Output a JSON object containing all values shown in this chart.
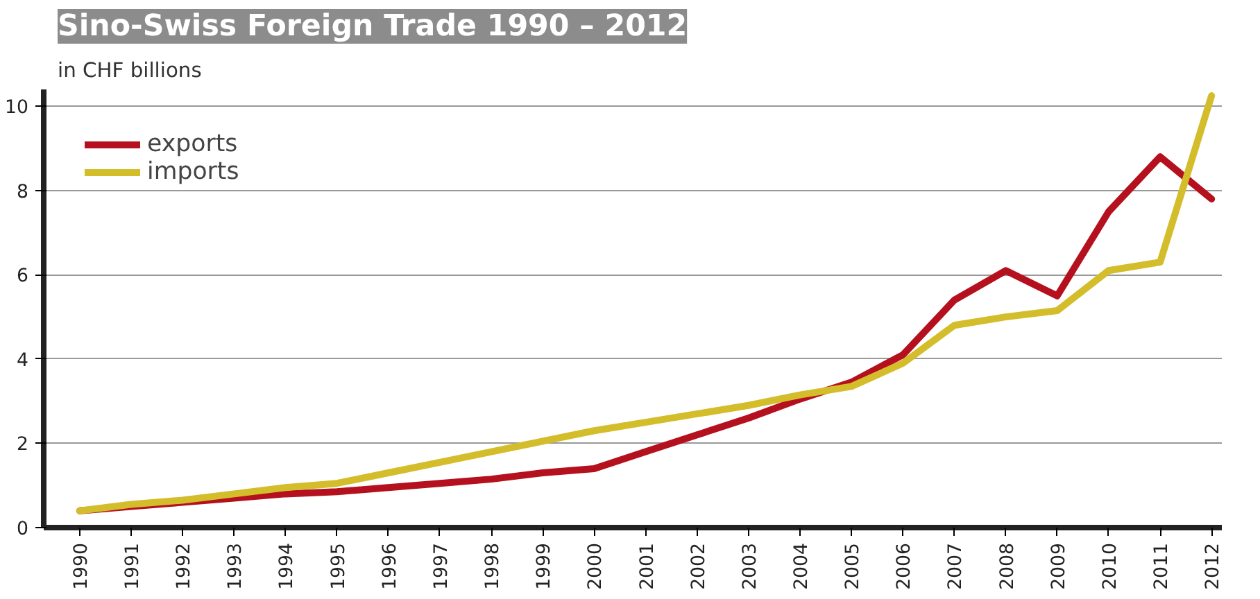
{
  "chart_data": {
    "type": "line",
    "title": "Sino-Swiss Foreign Trade 1990 – 2012",
    "ylabel": "in CHF billions",
    "categories": [
      "1990",
      "1991",
      "1992",
      "1993",
      "1994",
      "1995",
      "1996",
      "1997",
      "1998",
      "1999",
      "2000",
      "2001",
      "2002",
      "2003",
      "2004",
      "2005",
      "2006",
      "2007",
      "2008",
      "2009",
      "2010",
      "2011",
      "2012"
    ],
    "series": [
      {
        "name": "exports",
        "color": "#b5101e",
        "values": [
          0.4,
          0.5,
          0.6,
          0.7,
          0.8,
          0.85,
          0.95,
          1.05,
          1.15,
          1.3,
          1.4,
          1.8,
          2.2,
          2.6,
          3.05,
          3.45,
          4.1,
          5.4,
          6.1,
          5.5,
          7.5,
          8.8,
          7.8
        ]
      },
      {
        "name": "imports",
        "color": "#d4bd2a",
        "values": [
          0.4,
          0.55,
          0.65,
          0.8,
          0.95,
          1.05,
          1.3,
          1.55,
          1.8,
          2.05,
          2.3,
          2.5,
          2.7,
          2.9,
          3.15,
          3.35,
          3.9,
          4.8,
          5.0,
          5.15,
          6.1,
          6.3,
          10.25
        ]
      }
    ],
    "ylim": [
      0,
      10.4
    ],
    "yticks": [
      0,
      2,
      4,
      6,
      8,
      10
    ],
    "grid": "y",
    "legend": "top left",
    "marker": "none",
    "line_style": "solid"
  }
}
